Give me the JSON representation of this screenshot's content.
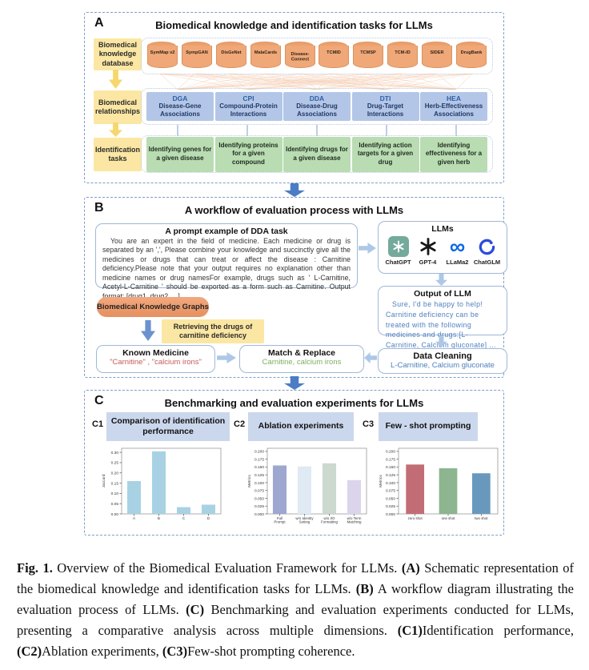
{
  "figure": {
    "panelA": {
      "label": "A",
      "title": "Biomedical knowledge and identification tasks for LLMs",
      "side_boxes": [
        "Biomedical knowledge database",
        "Biomedical relationships",
        "Identification tasks"
      ],
      "databases": [
        "SymMap v2",
        "SympGAN",
        "DisGeNet",
        "MalaCards",
        "Disease-Connect",
        "TCMID",
        "TCMSP",
        "TCM-ID",
        "SIDER",
        "DrugBank"
      ],
      "relationships": [
        {
          "abbr": "DGA",
          "name": "Disease-Gene Associations"
        },
        {
          "abbr": "CPI",
          "name": "Compound-Protein Interactions"
        },
        {
          "abbr": "DDA",
          "name": "Disease-Drug Associations"
        },
        {
          "abbr": "DTI",
          "name": "Drug-Target Interactions"
        },
        {
          "abbr": "HEA",
          "name": "Herb-Effectiveness Associations"
        }
      ],
      "tasks": [
        "Identifying genes for a given disease",
        "Identifying proteins for a given compound",
        "Identifying drugs for a given disease",
        "Identifying action targets for a given drug",
        "Identifying effectiveness for a given herb"
      ]
    },
    "panelB": {
      "label": "B",
      "title": "A workflow of evaluation process with LLMs",
      "prompt_box": {
        "title": "A prompt example of DDA task",
        "body": "You are an expert in the field of medicine. Each medicine or drug is separated by an ',', Please  combine your knowledge and succinctly give all the medicines or drugs that can treat or affect the disease : Carnitine deficiency.Please note that your output requires no explanation other than medicine names or drug namesFor example, drugs such as ' L-Carnitine, Acetyl-L-Carnitine ' should be exported as a form such as Carnitine. Output format: [drug1, drug2, ...]"
      },
      "llms": {
        "title": "LLMs",
        "models": [
          "ChatGPT",
          "GPT-4",
          "LLaMa2",
          "ChatGLM"
        ]
      },
      "output_box": {
        "title": "Output of LLM",
        "body": "Sure, I'd be happy to help! Carnitine deficiency can be treated with the following medicines and drugs:[L-Carnitine, Calcium gluconate] ..."
      },
      "data_cleaning": {
        "title": "Data Cleaning",
        "body": "L-Carnitine, Calcium gluconate"
      },
      "bkg_box": "Biomedical Knowledge Graphs",
      "retrieving_box": "Retrieving the drugs of carnitine deficiency",
      "known_medicine": {
        "title": "Known  Medicine",
        "body": "\"Carnitine\" ,  \"calcium irons\""
      },
      "match_replace": {
        "title": "Match & Replace",
        "body": "Carnitine, calcium irons"
      }
    },
    "panelC": {
      "label": "C",
      "title": "Benchmarking and evaluation experiments for LLMs",
      "subpanels": [
        {
          "label": "C1",
          "title": "Comparison of identification performance"
        },
        {
          "label": "C2",
          "title": "Ablation experiments"
        },
        {
          "label": "C3",
          "title": "Few - shot prompting"
        }
      ]
    },
    "caption": [
      {
        "t": "Fig. 1.",
        "b": true
      },
      {
        "t": " Overview of the Biomedical Evaluation Framework for LLMs. ",
        "b": false
      },
      {
        "t": "(A)",
        "b": true
      },
      {
        "t": " Schematic representation of the biomedical knowledge and identification tasks for LLMs. ",
        "b": false
      },
      {
        "t": "(B)",
        "b": true
      },
      {
        "t": " A workflow diagram illustrating the evaluation process of LLMs. ",
        "b": false
      },
      {
        "t": "(C)",
        "b": true
      },
      {
        "t": " Benchmarking and evaluation experiments conducted for LLMs, presenting a comparative analysis across multiple dimensions. ",
        "b": false
      },
      {
        "t": "(C1)",
        "b": true
      },
      {
        "t": "Identification performance, ",
        "b": false
      },
      {
        "t": "(C2)",
        "b": true
      },
      {
        "t": "Ablation experiments, ",
        "b": false
      },
      {
        "t": "(C3)",
        "b": true
      },
      {
        "t": "Few-shot prompting coherence.",
        "b": false
      }
    ]
  },
  "chart_data": [
    {
      "id": "c1",
      "type": "bar",
      "title": "",
      "categories": [
        [
          "A"
        ],
        [
          "B"
        ],
        [
          "C"
        ],
        [
          "D"
        ]
      ],
      "values": [
        0.16,
        0.305,
        0.033,
        0.045
      ],
      "bar_colors": [
        "#a8d2e3",
        "#a8d2e3",
        "#a8d2e3",
        "#a8d2e3"
      ],
      "xlabel": "",
      "ylabel": "Jaccard",
      "ylim": [
        0,
        0.32
      ],
      "yticks": [
        "0.00",
        "0.05",
        "0.10",
        "0.15",
        "0.20",
        "0.25",
        "0.30"
      ],
      "grid": false,
      "legend": "none"
    },
    {
      "id": "c2",
      "type": "bar",
      "title": "",
      "categories": [
        [
          "Full",
          "Prompt"
        ],
        [
          "w/o Identity",
          "Setting"
        ],
        [
          "w/o I/O",
          "Formatting"
        ],
        [
          "w/o Term",
          "Matching"
        ]
      ],
      "values": [
        0.155,
        0.152,
        0.162,
        0.108
      ],
      "bar_colors": [
        "#9ea7d0",
        "#dfeaf3",
        "#cbd9cf",
        "#dcd4ea"
      ],
      "xlabel": "",
      "ylabel": "Metrics",
      "ylim": [
        0,
        0.21
      ],
      "yticks": [
        "0.000",
        "0.025",
        "0.050",
        "0.075",
        "0.100",
        "0.125",
        "0.150",
        "0.175",
        "0.200"
      ],
      "grid": false,
      "legend": "none"
    },
    {
      "id": "c3",
      "type": "bar",
      "title": "",
      "categories": [
        [
          "zero shot"
        ],
        [
          "one shot"
        ],
        [
          "two shot"
        ]
      ],
      "values": [
        0.158,
        0.146,
        0.13
      ],
      "bar_colors": [
        "#c26d76",
        "#8db58f",
        "#6899bd"
      ],
      "xlabel": "",
      "ylabel": "Metrics",
      "ylim": [
        0,
        0.21
      ],
      "yticks": [
        "0.000",
        "0.025",
        "0.050",
        "0.075",
        "0.100",
        "0.125",
        "0.150",
        "0.175",
        "0.200"
      ],
      "grid": false,
      "legend": "none"
    }
  ],
  "colors": {
    "panel_border": "#7e9cc8",
    "yellow_box": "#fbe7a3",
    "yellow_arrow": "#f6d76e",
    "cylinder": "#f0a878",
    "relationship_box": "#b3c6e7",
    "task_box": "#b9dcb2",
    "pale_arrow": "#aec7e6",
    "blue_arrow": "#4b7cc4",
    "llm_output_text": "#4d7ebf",
    "known_medicine_text": "#c65b5b",
    "match_replace_text": "#7cae5c",
    "orange_pill": "#eb9a6e",
    "subpanel_header": "#cbd7ec",
    "chatgpt_tile": "#74aa9c",
    "meta_blue": "#0668e1",
    "chatglm_blue": "#2b4bdf"
  }
}
